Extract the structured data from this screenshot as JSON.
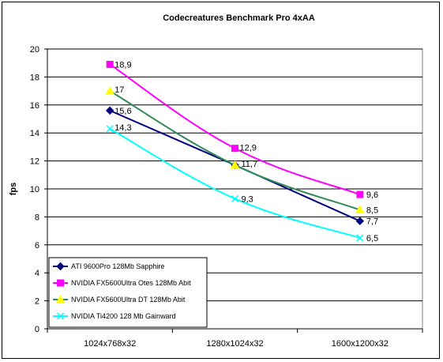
{
  "chart_data": {
    "type": "line",
    "title": "Codecreatures Benchmark Pro 4xAA",
    "xlabel": "",
    "ylabel": "fps",
    "categories": [
      "1024x768x32",
      "1280x1024x32",
      "1600x1200x32"
    ],
    "ylim": [
      0,
      20
    ],
    "yticks": [
      0,
      2,
      4,
      6,
      8,
      10,
      12,
      14,
      16,
      18,
      20
    ],
    "grid": true,
    "legend_position": "bottom-left",
    "series": [
      {
        "name": "ATI 9600Pro 128Mb Sapphire",
        "values": [
          15.6,
          11.7,
          7.7
        ],
        "labels": [
          "15,6",
          "",
          "7,7"
        ],
        "color": "#000080",
        "marker": "diamond"
      },
      {
        "name": "NVIDIA FX5600Ultra Otes 128Mb Abit",
        "values": [
          18.9,
          12.9,
          9.6
        ],
        "labels": [
          "18,9",
          "12,9",
          "9,6"
        ],
        "color": "#ff00ff",
        "marker": "square"
      },
      {
        "name": "NVIDIA FX5600Ultra DT 128Mb Abit",
        "values": [
          17,
          11.7,
          8.5
        ],
        "labels": [
          "17",
          "11,7",
          "8,5"
        ],
        "color": "#2e8b57",
        "marker_color": "#ffff00",
        "marker": "triangle"
      },
      {
        "name": "NVIDIA Ti4200 128 Mb Gainward",
        "values": [
          14.3,
          9.3,
          6.5
        ],
        "labels": [
          "14,3",
          "9,3",
          "6,5"
        ],
        "color": "#00ffff",
        "marker": "x"
      }
    ]
  }
}
